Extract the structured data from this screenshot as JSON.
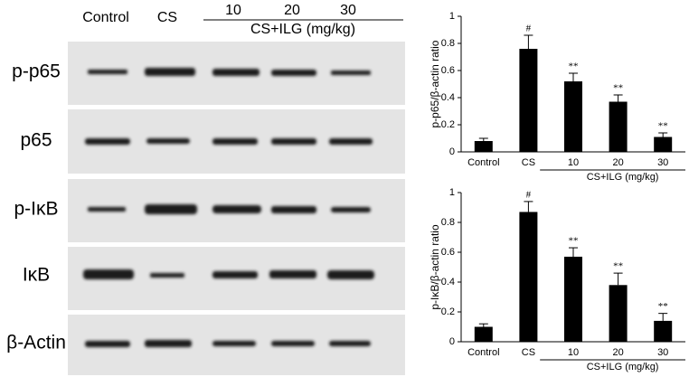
{
  "blot": {
    "columns": [
      "Control",
      "CS",
      "10",
      "20",
      "30"
    ],
    "group_label": "CS+ILG (mg/kg)",
    "rows": [
      "p-p65",
      "p65",
      "p-IκB",
      "IκB",
      "β-Actin"
    ]
  },
  "chart_data": [
    {
      "type": "bar",
      "y_label": "p-p65/β-actin ratio",
      "categories": [
        "Control",
        "CS",
        "10",
        "20",
        "30"
      ],
      "group_label": "CS+ILG (mg/kg)",
      "values": [
        0.08,
        0.76,
        0.52,
        0.37,
        0.11
      ],
      "errors": [
        0.02,
        0.1,
        0.06,
        0.05,
        0.03
      ],
      "annotations": [
        null,
        "#",
        "**",
        "**",
        "**"
      ],
      "color": "#000000",
      "ylim": [
        0,
        1
      ],
      "yticks": [
        0,
        0.2,
        0.4,
        0.6,
        0.8,
        1
      ]
    },
    {
      "type": "bar",
      "y_label": "p-IκB/β-actin ratio",
      "categories": [
        "Control",
        "CS",
        "10",
        "20",
        "30"
      ],
      "group_label": "CS+ILG (mg/kg)",
      "values": [
        0.1,
        0.87,
        0.57,
        0.38,
        0.14
      ],
      "errors": [
        0.02,
        0.07,
        0.06,
        0.08,
        0.05
      ],
      "annotations": [
        null,
        "#",
        "**",
        "**",
        "**"
      ],
      "color": "#000000",
      "ylim": [
        0,
        1
      ],
      "yticks": [
        0,
        0.2,
        0.4,
        0.6,
        0.8,
        1
      ]
    }
  ]
}
